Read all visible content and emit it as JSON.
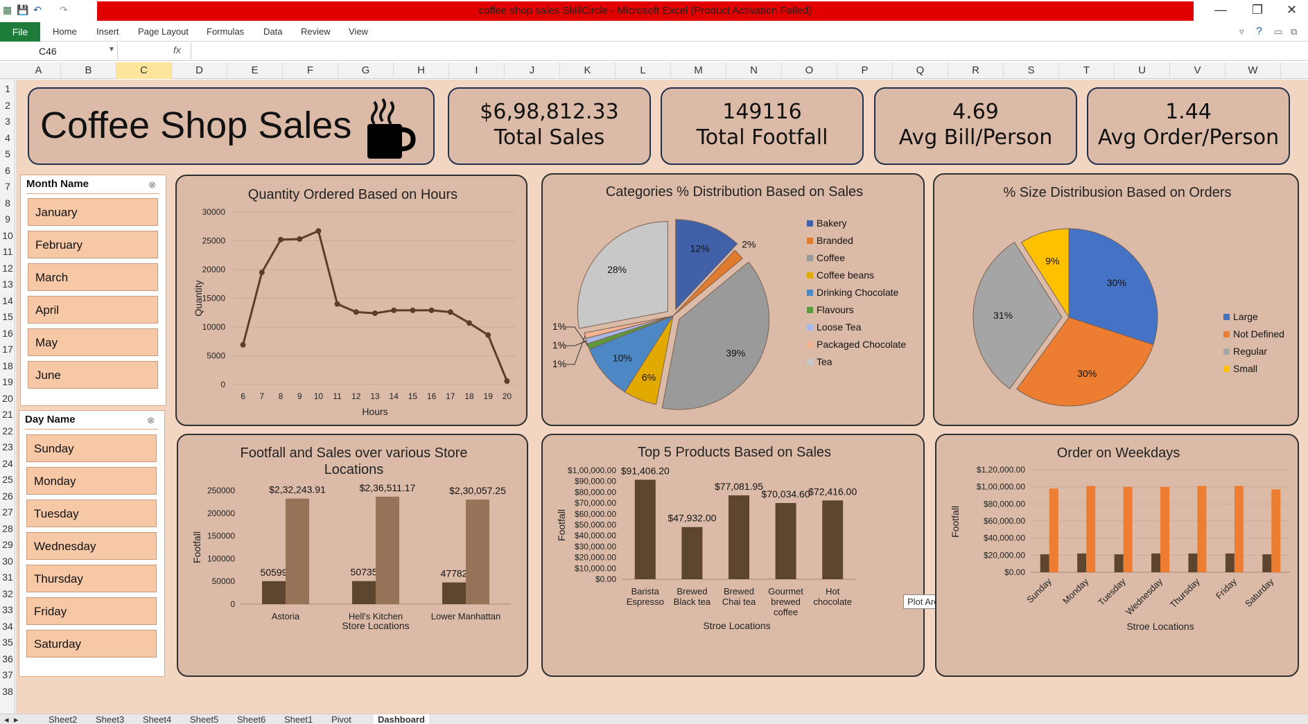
{
  "window": {
    "title": "coffee shop sales SkillCircle  -  Microsoft Excel (Product Activation Failed)"
  },
  "ribbon": {
    "file": "File",
    "tabs": [
      "Home",
      "Insert",
      "Page Layout",
      "Formulas",
      "Data",
      "Review",
      "View"
    ]
  },
  "formula_bar": {
    "cell": "C46",
    "fx": "fx",
    "value": ""
  },
  "columns": [
    "A",
    "B",
    "C",
    "D",
    "E",
    "F",
    "G",
    "H",
    "I",
    "J",
    "K",
    "L",
    "M",
    "N",
    "O",
    "P",
    "Q",
    "R",
    "S",
    "T",
    "U",
    "V",
    "W"
  ],
  "rows": [
    "1",
    "2",
    "3",
    "4",
    "5",
    "6",
    "7",
    "8",
    "9",
    "10",
    "11",
    "12",
    "13",
    "14",
    "15",
    "16",
    "17",
    "18",
    "19",
    "20",
    "21",
    "22",
    "23",
    "24",
    "25",
    "26",
    "27",
    "28",
    "29",
    "30",
    "31",
    "32",
    "33",
    "34",
    "35",
    "36",
    "37",
    "38"
  ],
  "dashboard": {
    "title": "Coffee Shop Sales"
  },
  "kpis": [
    {
      "value": "$6,98,812.33",
      "label": "Total Sales"
    },
    {
      "value": "149116",
      "label": "Total Footfall"
    },
    {
      "value": "4.69",
      "label": "Avg Bill/Person"
    },
    {
      "value": "1.44",
      "label": "Avg Order/Person"
    }
  ],
  "slicers": {
    "month": {
      "header": "Month Name",
      "items": [
        "January",
        "February",
        "March",
        "April",
        "May",
        "June"
      ]
    },
    "day": {
      "header": "Day Name",
      "items": [
        "Sunday",
        "Monday",
        "Tuesday",
        "Wednesday",
        "Thursday",
        "Friday",
        "Saturday"
      ]
    }
  },
  "tooltip": "Plot Area",
  "sheet_tabs": [
    "Sheet2",
    "Sheet3",
    "Sheet4",
    "Sheet5",
    "Sheet6",
    "Sheet1",
    "Pivot",
    "Dashboard"
  ],
  "active_sheet": "Dashboard",
  "chart_data": [
    {
      "type": "line",
      "title": "Quantity Ordered Based on Hours",
      "xlabel": "Hours",
      "ylabel": "Quantity",
      "x": [
        6,
        7,
        8,
        9,
        10,
        11,
        12,
        13,
        14,
        15,
        16,
        17,
        18,
        19,
        20
      ],
      "values": [
        6900,
        19500,
        25200,
        25300,
        26700,
        14000,
        12600,
        12400,
        12900,
        12900,
        12900,
        12600,
        10700,
        8600,
        600
      ],
      "ylim": [
        0,
        30000
      ],
      "yticks": [
        "30000",
        "25000",
        "20000",
        "15000",
        "10000",
        "5000",
        "0"
      ],
      "color": "#5b3d28"
    },
    {
      "type": "pie",
      "title": "Categories % Distribution  Based on Sales",
      "labels": [
        "Bakery",
        "Branded",
        "Coffee",
        "Coffee beans",
        "Drinking Chocolate",
        "Flavours",
        "Loose Tea",
        "Packaged Chocolate",
        "Tea"
      ],
      "values": [
        12,
        2,
        39,
        6,
        10,
        1,
        1,
        1,
        28
      ],
      "data_labels": [
        "12%",
        "2%",
        "39%",
        "6%",
        "10%",
        "1%",
        "1%",
        "1%",
        "28%"
      ],
      "colors": [
        "#4060a8",
        "#e07a2e",
        "#9a9a9a",
        "#e2aa00",
        "#4d88c4",
        "#5d9a3c",
        "#a8b8e6",
        "#f2b494",
        "#c8c8c8"
      ],
      "legend": "right"
    },
    {
      "type": "pie",
      "title": "% Size Distribusion Based on Orders",
      "labels": [
        "Large",
        "Not Defined",
        "Regular",
        "Small"
      ],
      "values": [
        30,
        30,
        31,
        9
      ],
      "data_labels": [
        "30%",
        "30%",
        "31%",
        "9%"
      ],
      "colors": [
        "#4472c4",
        "#ed7d31",
        "#a5a5a5",
        "#ffc000"
      ],
      "legend": "right"
    },
    {
      "type": "bar",
      "title": "Footfall and Sales over various Store Locations",
      "xlabel": "Store Locations",
      "ylabel": "Footfall",
      "categories": [
        "Astoria",
        "Hell's Kitchen",
        "Lower Manhattan"
      ],
      "series": [
        {
          "values": [
            50599,
            50735,
            47782
          ],
          "labels": [
            "50599",
            "50735",
            "47782"
          ],
          "color": "#5e4530"
        },
        {
          "values": [
            232243.91,
            236511.17,
            230057.25
          ],
          "labels": [
            "$2,32,243.91",
            "$2,36,511.17",
            "$2,30,057.25"
          ],
          "color": "#967259"
        }
      ],
      "ylim": [
        0,
        250000
      ],
      "yticks": [
        "250000",
        "200000",
        "150000",
        "100000",
        "50000",
        "0"
      ]
    },
    {
      "type": "bar",
      "title": "Top 5 Products Based on Sales",
      "xlabel": "Stroe Locations",
      "ylabel": "Footfall",
      "categories": [
        "Barista Espresso",
        "Brewed Black tea",
        "Brewed Chai tea",
        "Gourmet brewed coffee",
        "Hot chocolate"
      ],
      "values": [
        91406.2,
        47932,
        77081.95,
        70034.6,
        72416
      ],
      "data_labels": [
        "$91,406.20",
        "$47,932.00",
        "$77,081.95",
        "$70,034.60",
        "$72,416.00"
      ],
      "ylim": [
        0,
        100000
      ],
      "yticks": [
        "$1,00,000.00",
        "$90,000.00",
        "$80,000.00",
        "$70,000.00",
        "$60,000.00",
        "$50,000.00",
        "$40,000.00",
        "$30,000.00",
        "$20,000.00",
        "$10,000.00",
        "$0.00"
      ],
      "color": "#5e4530"
    },
    {
      "type": "bar",
      "title": "Order on Weekdays",
      "xlabel": "Stroe Locations",
      "ylabel": "Footfall",
      "categories": [
        "Sunday",
        "Monday",
        "Tuesday",
        "Wednesday",
        "Thursday",
        "Friday",
        "Saturday"
      ],
      "series": [
        {
          "values": [
            21000,
            22000,
            21000,
            22000,
            22000,
            22000,
            21000
          ],
          "color": "#5e4530"
        },
        {
          "values": [
            98000,
            101000,
            100000,
            100000,
            101000,
            101000,
            97000
          ],
          "color": "#ed7d31"
        }
      ],
      "ylim": [
        0,
        120000
      ],
      "yticks": [
        "$1,20,000.00",
        "$1,00,000.00",
        "$80,000.00",
        "$60,000.00",
        "$40,000.00",
        "$20,000.00",
        "$0.00"
      ]
    }
  ]
}
